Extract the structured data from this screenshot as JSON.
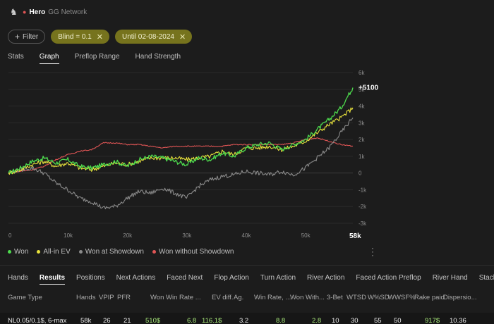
{
  "header": {
    "player": "Hero",
    "network": "GG Network"
  },
  "filters": {
    "filter_label": "Filter",
    "chips": [
      {
        "label": "Blind = 0.1"
      },
      {
        "label": "Until 02-08-2024"
      }
    ]
  },
  "view_tabs": [
    "Stats",
    "Graph",
    "Preflop Range",
    "Hand Strength"
  ],
  "active_view_tab": "Graph",
  "chart_data": {
    "type": "line",
    "x": [
      0,
      2,
      4,
      6,
      8,
      10,
      12,
      14,
      16,
      18,
      20,
      22,
      24,
      26,
      28,
      30,
      32,
      34,
      36,
      38,
      40,
      42,
      44,
      46,
      48,
      50,
      52,
      54,
      56,
      58
    ],
    "x_ticks": [
      "0",
      "10k",
      "20k",
      "30k",
      "40k",
      "50k"
    ],
    "x_end_label": "58k",
    "y_ticks": [
      "6k",
      "5k",
      "4k",
      "3k",
      "2k",
      "1k",
      "0",
      "-1k",
      "-2k",
      "-3k"
    ],
    "ylim": [
      -3000,
      6000
    ],
    "xlim": [
      0,
      58
    ],
    "end_annotation": "+5100",
    "series": [
      {
        "name": "Won",
        "color": "#4ddb4d",
        "values": [
          0,
          300,
          700,
          900,
          600,
          800,
          400,
          300,
          500,
          700,
          400,
          800,
          1000,
          900,
          700,
          500,
          900,
          800,
          1200,
          1000,
          1500,
          1700,
          1800,
          1400,
          1700,
          2000,
          2600,
          3200,
          3900,
          5100
        ]
      },
      {
        "name": "All-in EV",
        "color": "#e8e23c",
        "values": [
          0,
          200,
          500,
          700,
          400,
          600,
          300,
          200,
          400,
          600,
          500,
          700,
          900,
          900,
          900,
          800,
          900,
          1000,
          1300,
          1100,
          1500,
          1500,
          1600,
          1400,
          1600,
          1900,
          2400,
          2900,
          3300,
          3900
        ]
      },
      {
        "name": "Won at Showdown",
        "color": "#8a8a8a",
        "values": [
          0,
          200,
          300,
          0,
          -600,
          -1000,
          -1500,
          -1700,
          -2100,
          -2000,
          -1500,
          -1100,
          -1200,
          -900,
          -1200,
          -1500,
          -800,
          -400,
          -200,
          -100,
          100,
          0,
          -100,
          100,
          -100,
          300,
          900,
          1500,
          2400,
          3300
        ]
      },
      {
        "name": "Won without Showdown",
        "color": "#e05555",
        "values": [
          0,
          100,
          200,
          400,
          800,
          1100,
          1300,
          1400,
          1800,
          1800,
          1700,
          1700,
          1600,
          1500,
          1600,
          1600,
          1600,
          1600,
          1600,
          1700,
          1700,
          1700,
          1700,
          1700,
          1800,
          2000,
          2100,
          1900,
          1700,
          1600
        ]
      }
    ]
  },
  "legend_colors": {
    "Won": "#4ddb4d",
    "All-in EV": "#e8e23c",
    "Won at Showdown": "#8a8a8a",
    "Won without Showdown": "#e05555"
  },
  "bottom_tabs": [
    "Hands",
    "Results",
    "Positions",
    "Next Actions",
    "Faced Next",
    "Flop Action",
    "Turn Action",
    "River Action",
    "Faced Action Preflop",
    "River Hand",
    "Stack Sizes"
  ],
  "active_bottom_tab": "Results",
  "table": {
    "headers": [
      "Game Type",
      "Hands",
      "VPIP",
      "PFR",
      "Won",
      "Win Rate ...",
      "EV diff.",
      "Ag.",
      "Win Rate, ...",
      "Won With...",
      "3-Bet",
      "WTSD",
      "W%SD",
      "WWSF%",
      "Rake paid",
      "Dispersio..."
    ],
    "row": [
      "NL0.05/0.1$, 6-max",
      "58k",
      "26",
      "21",
      "510$",
      "6.8",
      "116.1$",
      "3.2",
      "8.8",
      "2.8",
      "10",
      "30",
      "55",
      "50",
      "917$",
      "10.36"
    ]
  }
}
